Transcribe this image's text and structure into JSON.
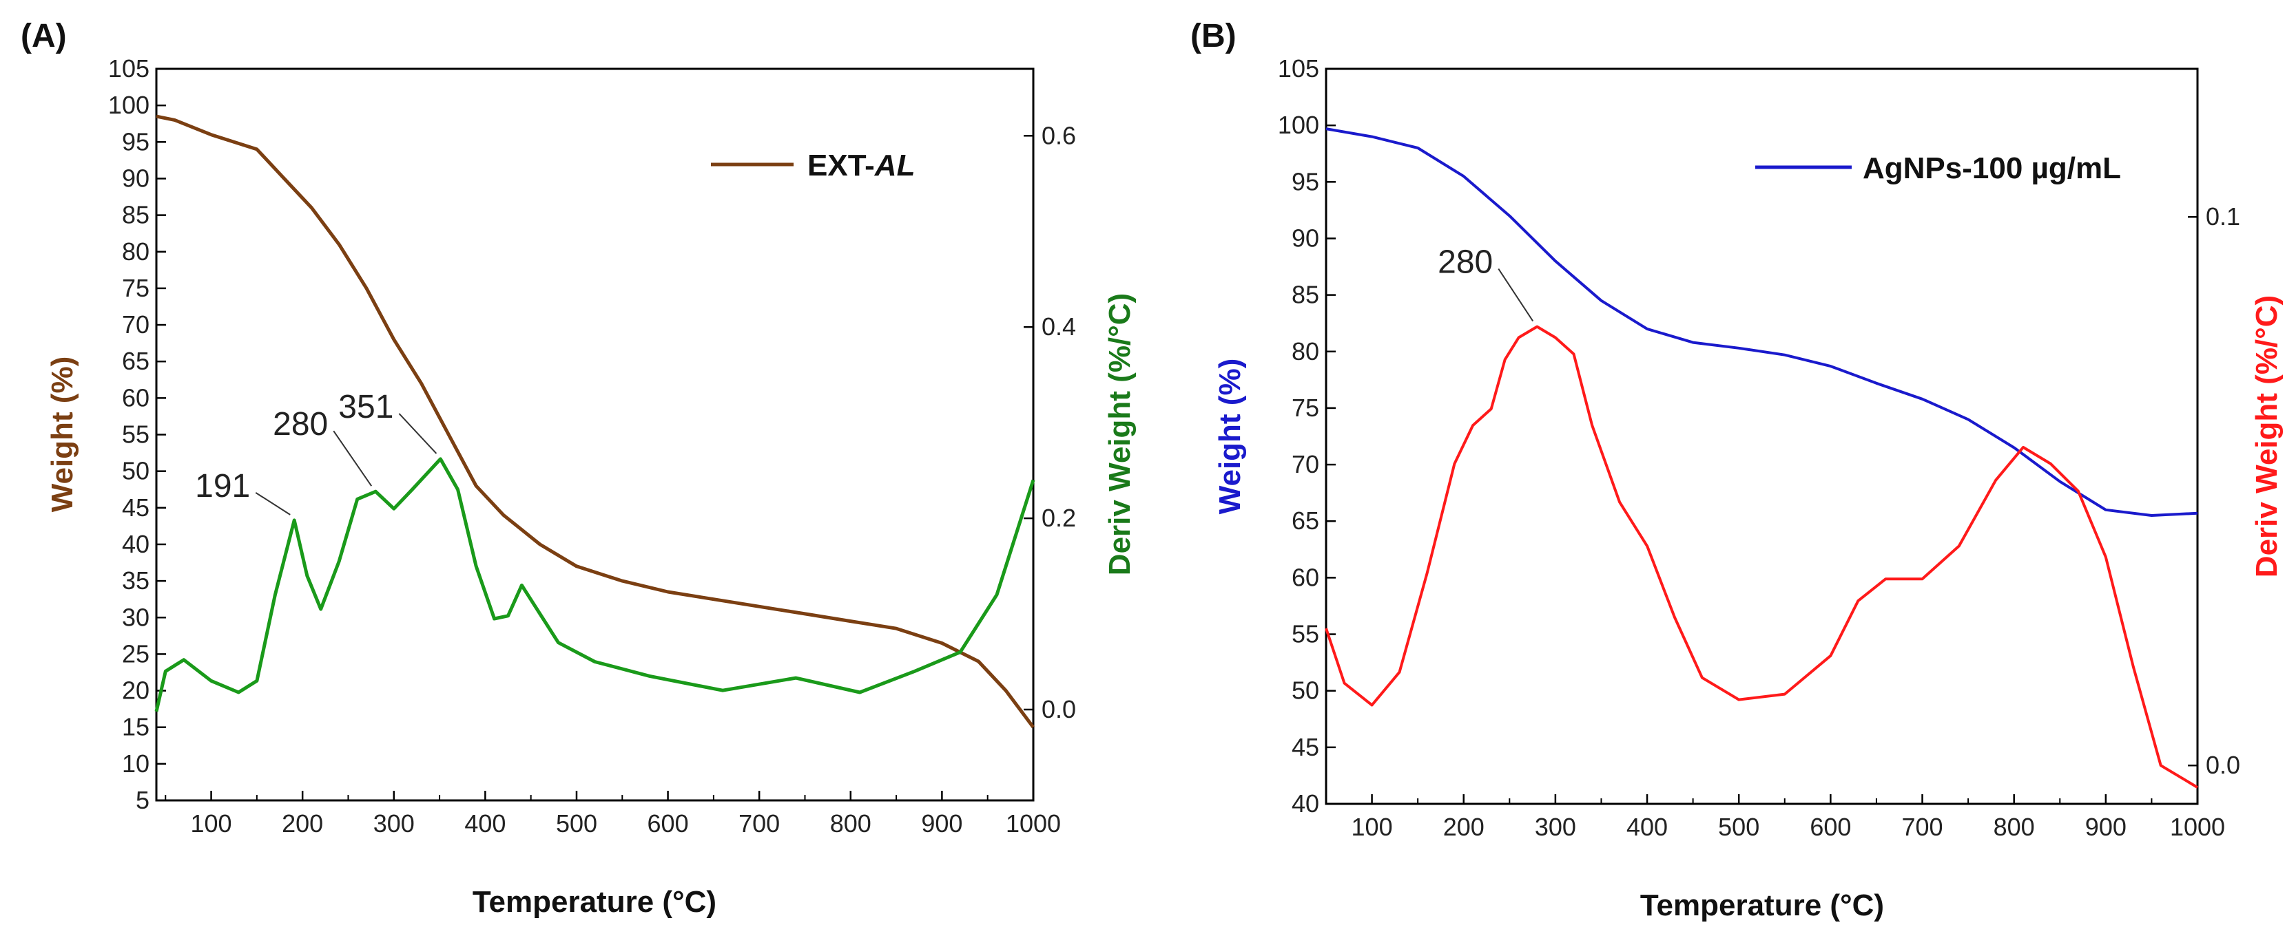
{
  "chart_data": [
    {
      "panel_label": "(A)",
      "type": "line",
      "xlabel": "Temperature (°C)",
      "ylabel_left": "Weight (%)",
      "ylabel_right": "Deriv Weight (%/°C)",
      "xlim": [
        40,
        1000
      ],
      "ylim_left": [
        5,
        105
      ],
      "ylim_right": [
        -0.095,
        0.67
      ],
      "x_ticks": [
        100,
        200,
        300,
        400,
        500,
        600,
        700,
        800,
        900,
        1000
      ],
      "y_ticks_left": [
        5,
        10,
        15,
        20,
        25,
        30,
        35,
        40,
        45,
        50,
        55,
        60,
        65,
        70,
        75,
        80,
        85,
        90,
        95,
        100,
        105
      ],
      "y_ticks_right": [
        "0.0",
        "0.2",
        "0.4",
        "0.6"
      ],
      "series": [
        {
          "name": "EXT-AL",
          "axis": "left",
          "color": "#7b3f12",
          "points": [
            [
              40,
              98.5
            ],
            [
              60,
              98
            ],
            [
              100,
              96
            ],
            [
              150,
              94
            ],
            [
              180,
              90
            ],
            [
              210,
              86
            ],
            [
              240,
              81
            ],
            [
              270,
              75
            ],
            [
              300,
              68
            ],
            [
              330,
              62
            ],
            [
              360,
              55
            ],
            [
              390,
              48
            ],
            [
              420,
              44
            ],
            [
              460,
              40
            ],
            [
              500,
              37
            ],
            [
              550,
              35
            ],
            [
              600,
              33.5
            ],
            [
              650,
              32.5
            ],
            [
              700,
              31.5
            ],
            [
              750,
              30.5
            ],
            [
              800,
              29.5
            ],
            [
              850,
              28.5
            ],
            [
              900,
              26.5
            ],
            [
              940,
              24
            ],
            [
              970,
              20
            ],
            [
              1000,
              15
            ]
          ]
        },
        {
          "name": "Deriv Weight",
          "axis": "right",
          "color": "#1a9a1a",
          "points": [
            [
              40,
              -0.002
            ],
            [
              50,
              0.04
            ],
            [
              70,
              0.052
            ],
            [
              100,
              0.03
            ],
            [
              130,
              0.018
            ],
            [
              150,
              0.03
            ],
            [
              170,
              0.12
            ],
            [
              191,
              0.198
            ],
            [
              205,
              0.14
            ],
            [
              220,
              0.105
            ],
            [
              240,
              0.155
            ],
            [
              260,
              0.22
            ],
            [
              280,
              0.228
            ],
            [
              300,
              0.21
            ],
            [
              320,
              0.23
            ],
            [
              351,
              0.262
            ],
            [
              370,
              0.23
            ],
            [
              390,
              0.15
            ],
            [
              410,
              0.095
            ],
            [
              425,
              0.098
            ],
            [
              440,
              0.13
            ],
            [
              460,
              0.1
            ],
            [
              480,
              0.07
            ],
            [
              520,
              0.05
            ],
            [
              580,
              0.035
            ],
            [
              660,
              0.02
            ],
            [
              740,
              0.033
            ],
            [
              810,
              0.018
            ],
            [
              870,
              0.04
            ],
            [
              920,
              0.06
            ],
            [
              960,
              0.12
            ],
            [
              1000,
              0.24
            ]
          ]
        }
      ],
      "legend": {
        "text": "EXT-",
        "text_italic": "AL",
        "position": "top-right"
      },
      "annotations": [
        {
          "text": "191",
          "x": 191,
          "y": 0.198,
          "axis": "right"
        },
        {
          "text": "280",
          "x": 280,
          "y": 0.228,
          "axis": "right"
        },
        {
          "text": "351",
          "x": 351,
          "y": 0.262,
          "axis": "right"
        }
      ]
    },
    {
      "panel_label": "(B)",
      "type": "line",
      "xlabel": "Temperature (°C)",
      "ylabel_left": "Weight (%)",
      "ylabel_right": "Deriv Weight (%/°C)",
      "xlim": [
        50,
        1000
      ],
      "ylim_left": [
        40,
        105
      ],
      "ylim_right": [
        -0.007,
        0.127
      ],
      "x_ticks": [
        100,
        200,
        300,
        400,
        500,
        600,
        700,
        800,
        900,
        1000
      ],
      "y_ticks_left": [
        40,
        45,
        50,
        55,
        60,
        65,
        70,
        75,
        80,
        85,
        90,
        95,
        100,
        105
      ],
      "y_ticks_right": [
        "0.0",
        "0.1"
      ],
      "series": [
        {
          "name": "AgNPs-100 µg/mL",
          "axis": "left",
          "color": "#1a1acc",
          "points": [
            [
              50,
              99.7
            ],
            [
              100,
              99
            ],
            [
              150,
              98
            ],
            [
              200,
              95.5
            ],
            [
              250,
              92
            ],
            [
              300,
              88
            ],
            [
              350,
              84.5
            ],
            [
              400,
              82
            ],
            [
              450,
              80.8
            ],
            [
              500,
              80.3
            ],
            [
              550,
              79.7
            ],
            [
              600,
              78.7
            ],
            [
              650,
              77.2
            ],
            [
              700,
              75.8
            ],
            [
              750,
              74
            ],
            [
              800,
              71.5
            ],
            [
              850,
              68.5
            ],
            [
              900,
              66
            ],
            [
              950,
              65.5
            ],
            [
              1000,
              65.7
            ]
          ]
        },
        {
          "name": "Deriv Weight",
          "axis": "right",
          "color": "#ff1a1a",
          "points": [
            [
              50,
              0.025
            ],
            [
              70,
              0.015
            ],
            [
              100,
              0.011
            ],
            [
              130,
              0.017
            ],
            [
              160,
              0.035
            ],
            [
              190,
              0.055
            ],
            [
              210,
              0.062
            ],
            [
              230,
              0.065
            ],
            [
              245,
              0.074
            ],
            [
              260,
              0.078
            ],
            [
              280,
              0.08
            ],
            [
              300,
              0.078
            ],
            [
              320,
              0.075
            ],
            [
              340,
              0.062
            ],
            [
              370,
              0.048
            ],
            [
              400,
              0.04
            ],
            [
              430,
              0.027
            ],
            [
              460,
              0.016
            ],
            [
              500,
              0.012
            ],
            [
              550,
              0.013
            ],
            [
              600,
              0.02
            ],
            [
              630,
              0.03
            ],
            [
              660,
              0.034
            ],
            [
              700,
              0.034
            ],
            [
              740,
              0.04
            ],
            [
              780,
              0.052
            ],
            [
              810,
              0.058
            ],
            [
              840,
              0.055
            ],
            [
              870,
              0.05
            ],
            [
              900,
              0.038
            ],
            [
              930,
              0.018
            ],
            [
              960,
              0.0
            ],
            [
              1000,
              -0.004
            ]
          ]
        }
      ],
      "legend": {
        "text": "AgNPs-100 µg/mL",
        "position": "top-right"
      },
      "annotations": [
        {
          "text": "280",
          "x": 280,
          "y": 0.08,
          "axis": "right"
        }
      ]
    }
  ],
  "styles": {
    "panelA_left_color": "#7b3f12",
    "panelA_right_color": "#1a7a1a",
    "panelB_left_color": "#1a1acc",
    "panelB_right_color": "#ff1a1a"
  }
}
